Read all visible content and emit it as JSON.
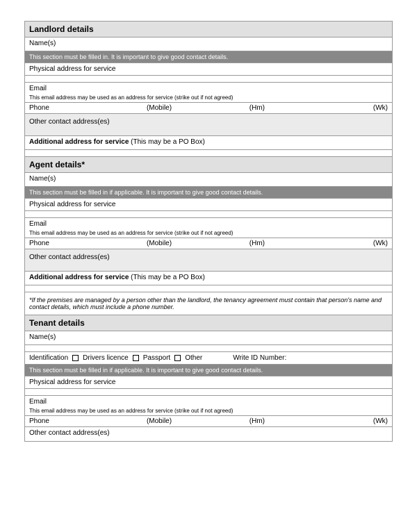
{
  "landlord": {
    "header": "Landlord details",
    "names_label": "Name(s)",
    "section_note": "This section must be filled in. It is important to give good contact details.",
    "physical_address_label": "Physical address for service",
    "email_label": "Email",
    "email_note": "This email address may be used as an address for service (strike out if not agreed)",
    "phone_label": "Phone",
    "mobile_label": "(Mobile)",
    "hm_label": "(Hm)",
    "wk_label": "(Wk)",
    "other_contact_label": "Other contact address(es)",
    "additional_address_label": "Additional address for service",
    "additional_address_hint": " (This may be a PO Box)"
  },
  "agent": {
    "header": "Agent details*",
    "names_label": "Name(s)",
    "section_note": "This section must be filled in if applicable. It is important to give good contact details.",
    "physical_address_label": "Physical address for service",
    "email_label": "Email",
    "email_note": "This email address may be used as an address for service (strike out if not agreed)",
    "phone_label": "Phone",
    "mobile_label": "(Mobile)",
    "hm_label": "(Hm)",
    "wk_label": "(Wk)",
    "other_contact_label": "Other contact address(es)",
    "additional_address_label": "Additional address for service",
    "additional_address_hint": " (This may be a PO Box)",
    "footnote": "*If the premises are managed by a person other than the landlord, the tenancy agreement must contain that person's name and contact details, which must include a phone number."
  },
  "tenant": {
    "header": "Tenant details",
    "names_label": "Name(s)",
    "identification_label": "Identification",
    "drivers_licence_label": "Drivers licence",
    "passport_label": "Passport",
    "other_label": "Other",
    "write_id_label": "Write ID Number:",
    "section_note": "This section must be filled in if applicable. It is important to give good contact details.",
    "physical_address_label": "Physical address for service",
    "email_label": "Email",
    "email_note": "This email address may be used as an address for service (strike out if not agreed)",
    "phone_label": "Phone",
    "mobile_label": "(Mobile)",
    "hm_label": "(Hm)",
    "wk_label": "(Wk)",
    "other_contact_label": "Other contact address(es)"
  }
}
